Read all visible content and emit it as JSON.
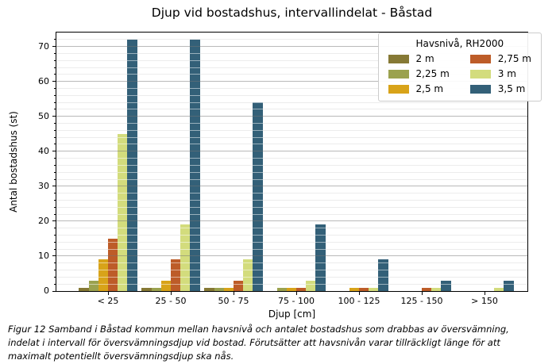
{
  "chart_data": {
    "type": "bar",
    "title": "Djup vid bostadshus, intervallindelat - Båstad",
    "xlabel": "Djup [cm]",
    "ylabel": "Antal bostadshus (st)",
    "ylim": [
      0,
      74
    ],
    "ytick_interval": 10,
    "minor_tick_interval": 2,
    "grid": true,
    "legend_position": "upper right",
    "categories": [
      "< 25",
      "25 - 50",
      "50 - 75",
      "75 - 100",
      "100 - 125",
      "125 - 150",
      "> 150"
    ],
    "series": [
      {
        "name": "2 m",
        "color": "#867935",
        "values": [
          1,
          1,
          1,
          0,
          0,
          0,
          0
        ]
      },
      {
        "name": "2,25 m",
        "color": "#9ba24f",
        "values": [
          3,
          1,
          1,
          1,
          0,
          0,
          0
        ]
      },
      {
        "name": "2,5 m",
        "color": "#d8a319",
        "values": [
          9,
          3,
          1,
          1,
          1,
          0,
          0
        ]
      },
      {
        "name": "2,75 m",
        "color": "#bd5c28",
        "values": [
          15,
          9,
          3,
          1,
          1,
          1,
          0
        ]
      },
      {
        "name": "3 m",
        "color": "#d3dc7d",
        "values": [
          45,
          19,
          9,
          3,
          1,
          1,
          1
        ]
      },
      {
        "name": "3,5 m",
        "color": "#336078",
        "values": [
          72,
          72,
          54,
          19,
          9,
          3,
          3
        ]
      }
    ],
    "legend": {
      "title": "Havsnivå, RH2000",
      "columns": 2
    }
  },
  "caption": "Figur 12 Samband i Båstad kommun mellan havsnivå och antalet bostadshus som drabbas av översvämning,\nindelat i intervall för översvämningsdjup vid bostad. Förutsätter att havsnivån varar tillräckligt länge för att\nmaximalt potentiellt översvämningsdjup ska nås.",
  "colors": {
    "grid_minor": "#d9d9d9",
    "grid_major": "rgba(115,115,115,0.5)",
    "grid_minor_overlay": "rgba(255,255,255,0.5)",
    "axis": "#000000",
    "legend_border": "#cccccc"
  }
}
